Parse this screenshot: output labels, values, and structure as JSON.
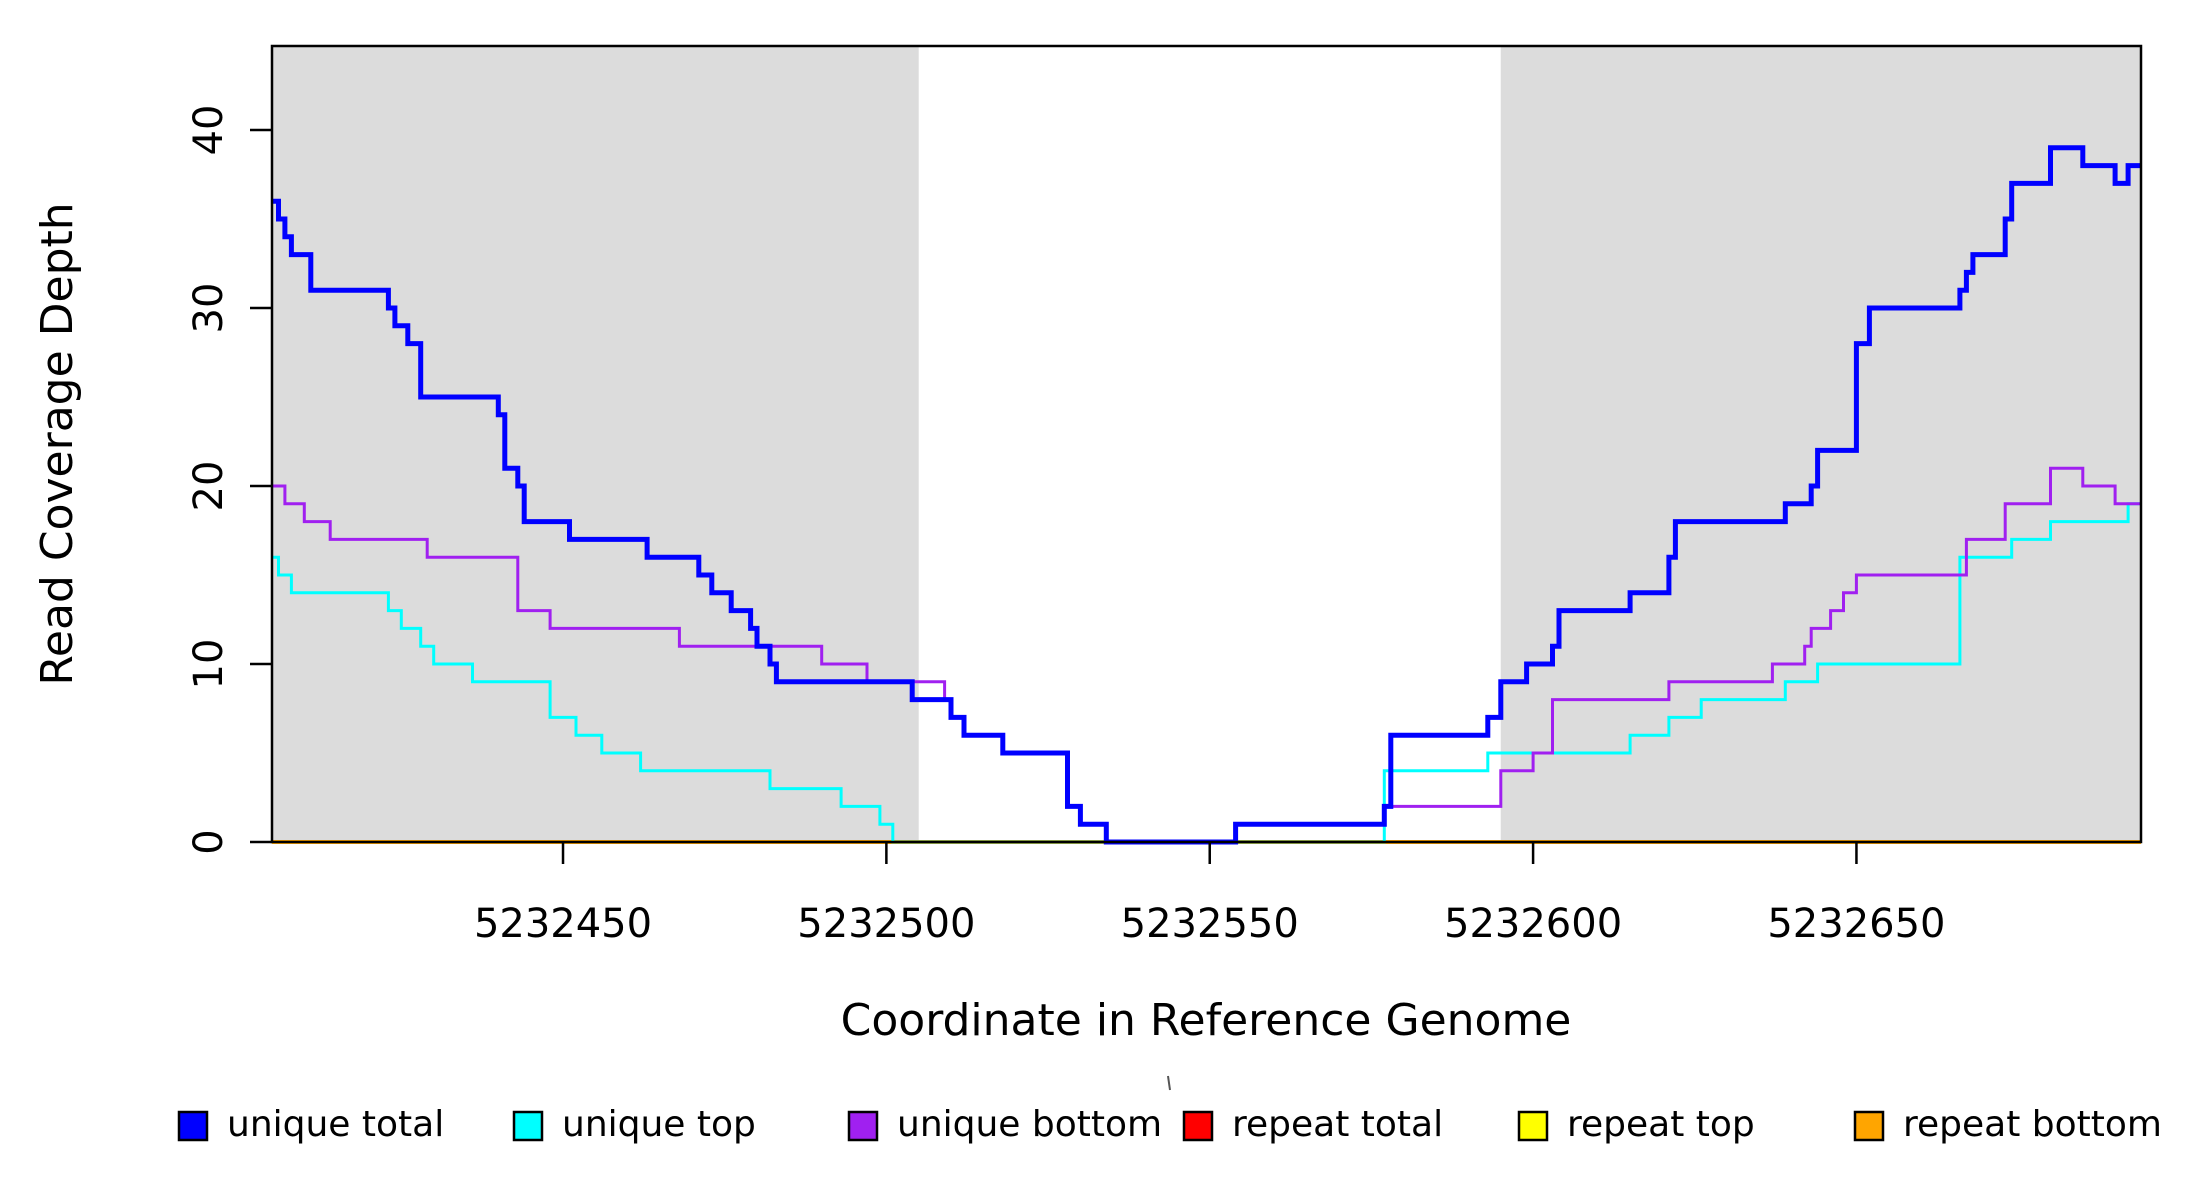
{
  "figure": {
    "background": "#ffffff",
    "frame_color": "#000000",
    "shade_color": "#dcdcdc"
  },
  "chart_data": {
    "type": "line",
    "step": "after",
    "title": "",
    "xlabel": "Coordinate in Reference Genome",
    "ylabel": "Read Coverage Depth",
    "xlim": [
      5232405,
      5232694
    ],
    "ylim": [
      0,
      44.72
    ],
    "x_ticks": [
      5232450,
      5232500,
      5232550,
      5232600,
      5232650
    ],
    "y_ticks": [
      0,
      10,
      20,
      30,
      40
    ],
    "grid": false,
    "legend_position": "bottom",
    "shaded_regions": [
      {
        "x0": 5232405,
        "x1": 5232505,
        "color": "#dcdcdc"
      },
      {
        "x0": 5232595,
        "x1": 5232694,
        "color": "#dcdcdc"
      }
    ],
    "series": [
      {
        "name": "unique total",
        "color": "#0000ff",
        "linewidth": 5,
        "points": [
          [
            5232405,
            36
          ],
          [
            5232406,
            35
          ],
          [
            5232407,
            34
          ],
          [
            5232408,
            33
          ],
          [
            5232411,
            31
          ],
          [
            5232423,
            30
          ],
          [
            5232424,
            29
          ],
          [
            5232426,
            28
          ],
          [
            5232428,
            25
          ],
          [
            5232440,
            24
          ],
          [
            5232441,
            21
          ],
          [
            5232443,
            20
          ],
          [
            5232444,
            18
          ],
          [
            5232451,
            17
          ],
          [
            5232463,
            16
          ],
          [
            5232471,
            15
          ],
          [
            5232473,
            14
          ],
          [
            5232476,
            13
          ],
          [
            5232479,
            12
          ],
          [
            5232480,
            11
          ],
          [
            5232482,
            10
          ],
          [
            5232483,
            9
          ],
          [
            5232504,
            8
          ],
          [
            5232510,
            7
          ],
          [
            5232512,
            6
          ],
          [
            5232518,
            5
          ],
          [
            5232528,
            2
          ],
          [
            5232530,
            1
          ],
          [
            5232534,
            0
          ],
          [
            5232554,
            1
          ],
          [
            5232577,
            2
          ],
          [
            5232578,
            6
          ],
          [
            5232593,
            7
          ],
          [
            5232595,
            9
          ],
          [
            5232599,
            10
          ],
          [
            5232603,
            11
          ],
          [
            5232604,
            13
          ],
          [
            5232615,
            14
          ],
          [
            5232621,
            16
          ],
          [
            5232622,
            18
          ],
          [
            5232639,
            19
          ],
          [
            5232643,
            20
          ],
          [
            5232644,
            22
          ],
          [
            5232650,
            28
          ],
          [
            5232652,
            30
          ],
          [
            5232666,
            31
          ],
          [
            5232667,
            32
          ],
          [
            5232668,
            33
          ],
          [
            5232673,
            35
          ],
          [
            5232674,
            37
          ],
          [
            5232680,
            39
          ],
          [
            5232685,
            38
          ],
          [
            5232690,
            37
          ],
          [
            5232692,
            38
          ],
          [
            5232694,
            38
          ]
        ]
      },
      {
        "name": "unique top",
        "color": "#00ffff",
        "linewidth": 3,
        "points": [
          [
            5232405,
            16
          ],
          [
            5232406,
            15
          ],
          [
            5232408,
            14
          ],
          [
            5232423,
            13
          ],
          [
            5232425,
            12
          ],
          [
            5232428,
            11
          ],
          [
            5232430,
            10
          ],
          [
            5232436,
            9
          ],
          [
            5232448,
            7
          ],
          [
            5232452,
            6
          ],
          [
            5232456,
            5
          ],
          [
            5232462,
            4
          ],
          [
            5232482,
            3
          ],
          [
            5232493,
            2
          ],
          [
            5232499,
            1
          ],
          [
            5232501,
            0
          ],
          [
            5232577,
            4
          ],
          [
            5232593,
            5
          ],
          [
            5232615,
            6
          ],
          [
            5232621,
            7
          ],
          [
            5232626,
            8
          ],
          [
            5232639,
            9
          ],
          [
            5232644,
            10
          ],
          [
            5232666,
            16
          ],
          [
            5232674,
            17
          ],
          [
            5232680,
            18
          ],
          [
            5232692,
            19
          ],
          [
            5232694,
            19
          ]
        ]
      },
      {
        "name": "unique bottom",
        "color": "#a020f0",
        "linewidth": 3,
        "points": [
          [
            5232405,
            20
          ],
          [
            5232407,
            19
          ],
          [
            5232410,
            18
          ],
          [
            5232414,
            17
          ],
          [
            5232429,
            16
          ],
          [
            5232443,
            13
          ],
          [
            5232448,
            12
          ],
          [
            5232468,
            11
          ],
          [
            5232490,
            10
          ],
          [
            5232497,
            9
          ],
          [
            5232509,
            8
          ],
          [
            5232510,
            7
          ],
          [
            5232512,
            6
          ],
          [
            5232518,
            5
          ],
          [
            5232528,
            2
          ],
          [
            5232530,
            1
          ],
          [
            5232534,
            0
          ],
          [
            5232554,
            1
          ],
          [
            5232577,
            2
          ],
          [
            5232595,
            4
          ],
          [
            5232600,
            5
          ],
          [
            5232603,
            8
          ],
          [
            5232621,
            9
          ],
          [
            5232637,
            10
          ],
          [
            5232642,
            11
          ],
          [
            5232643,
            12
          ],
          [
            5232646,
            13
          ],
          [
            5232648,
            14
          ],
          [
            5232650,
            15
          ],
          [
            5232667,
            17
          ],
          [
            5232673,
            19
          ],
          [
            5232680,
            21
          ],
          [
            5232685,
            20
          ],
          [
            5232690,
            19
          ],
          [
            5232694,
            19
          ]
        ]
      },
      {
        "name": "repeat total",
        "color": "#ff0000",
        "linewidth": 3,
        "points": [
          [
            5232405,
            0
          ],
          [
            5232694,
            0
          ]
        ]
      },
      {
        "name": "repeat top",
        "color": "#ffff00",
        "linewidth": 3,
        "points": [
          [
            5232405,
            0
          ],
          [
            5232694,
            0
          ]
        ]
      },
      {
        "name": "repeat bottom",
        "color": "#ffa500",
        "linewidth": 4,
        "points": [
          [
            5232405,
            0
          ],
          [
            5232694,
            0
          ]
        ]
      }
    ],
    "draw_order": [
      "repeat total",
      "repeat top",
      "repeat bottom",
      "unique top",
      "unique bottom",
      "unique total"
    ]
  },
  "legend": {
    "entries": [
      {
        "label": "unique total",
        "color": "#0000ff"
      },
      {
        "label": "unique top",
        "color": "#00ffff"
      },
      {
        "label": "unique bottom",
        "color": "#a020f0"
      },
      {
        "label": "repeat total",
        "color": "#ff0000"
      },
      {
        "label": "repeat top",
        "color": "#ffff00"
      },
      {
        "label": "repeat bottom",
        "color": "#ffa500"
      }
    ],
    "swatch_border": "#000000"
  }
}
